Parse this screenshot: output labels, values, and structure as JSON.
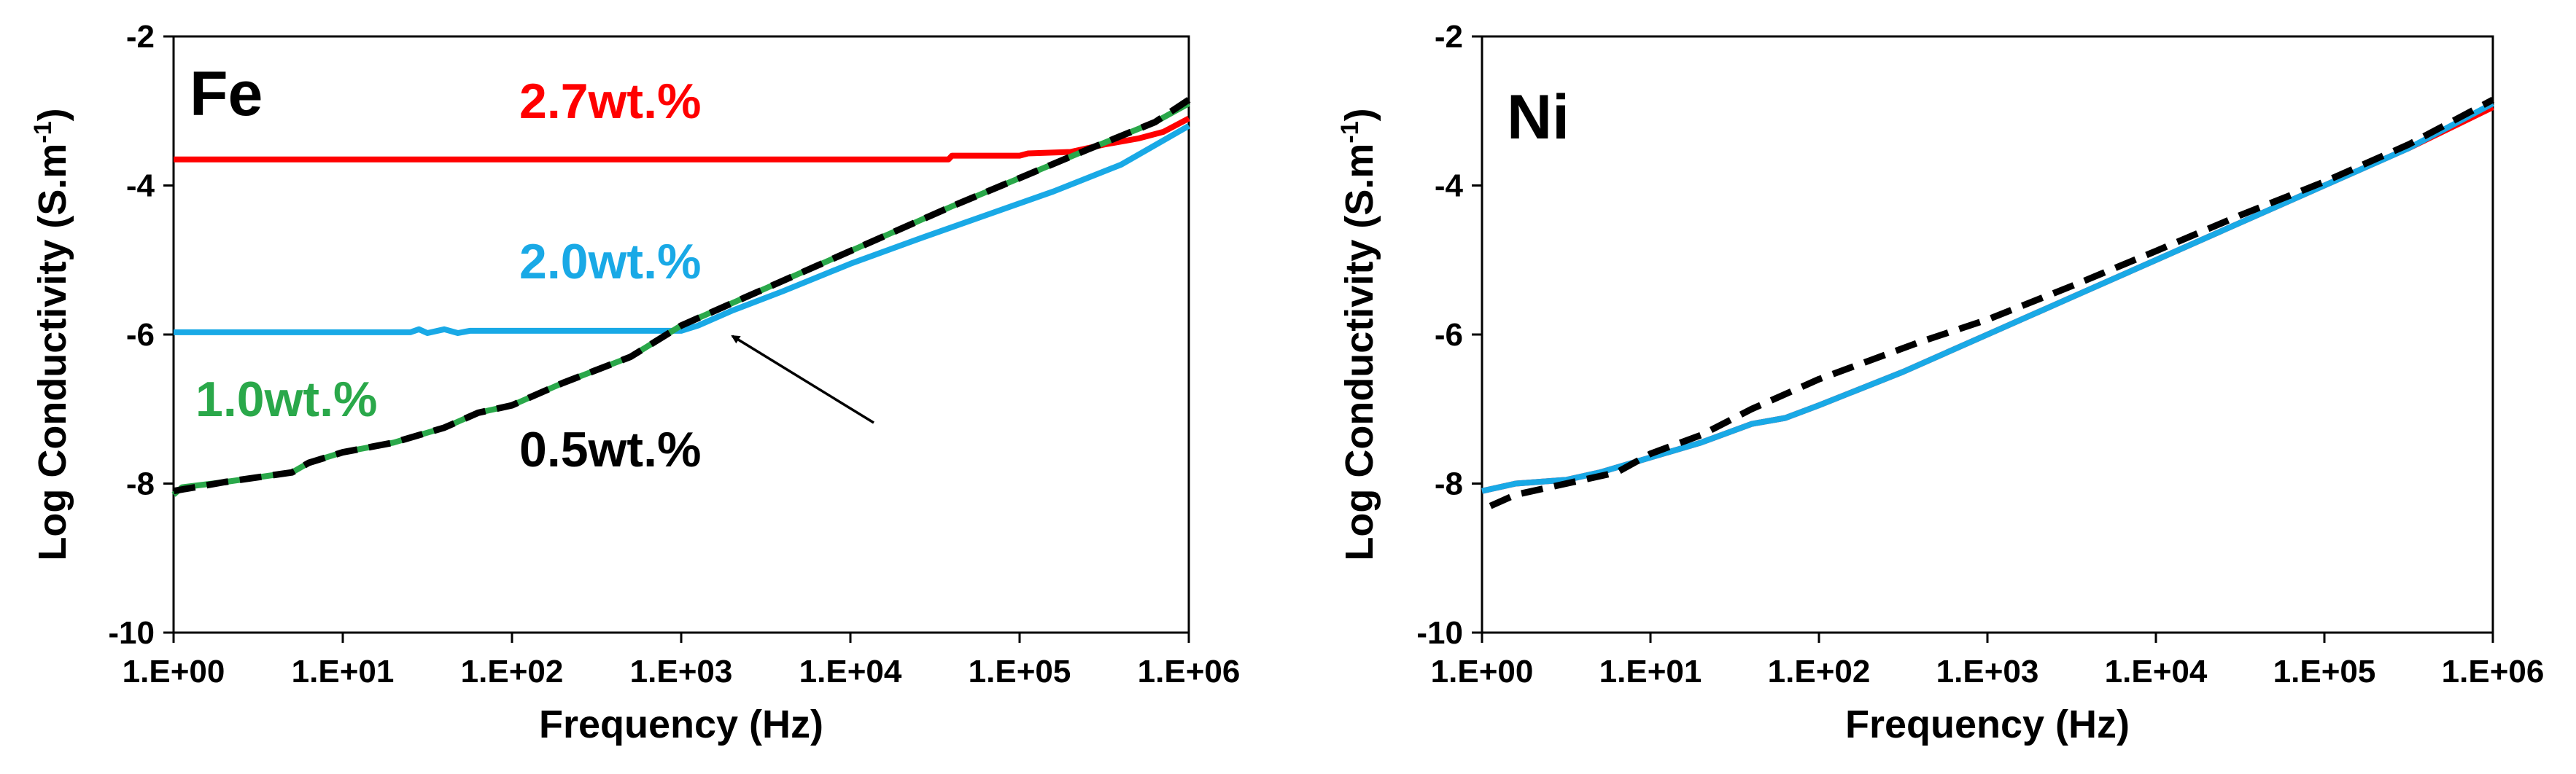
{
  "chart_data": [
    {
      "type": "line",
      "panel": "Fe",
      "title": "",
      "xlabel": "Frequency (Hz)",
      "ylabel": "Log Conductivity (S.m",
      "ylabel_superscript": "-1",
      "ylabel_close": ")",
      "xscale": "log",
      "xlim_exponent": [
        0,
        6
      ],
      "ylim": [
        -10,
        -2
      ],
      "xticks": [
        "1.E+00",
        "1.E+01",
        "1.E+02",
        "1.E+03",
        "1.E+04",
        "1.E+05",
        "1.E+06"
      ],
      "yticks": [
        "-2",
        "-4",
        "-6",
        "-8",
        "-10"
      ],
      "grid": false,
      "series": [
        {
          "name": "2.7wt.%",
          "color": "#ff0000",
          "style": "solid",
          "points": [
            [
              0,
              -3.65
            ],
            [
              4.58,
              -3.65
            ],
            [
              4.6,
              -3.6
            ],
            [
              5.0,
              -3.6
            ],
            [
              5.05,
              -3.57
            ],
            [
              5.3,
              -3.55
            ],
            [
              5.5,
              -3.45
            ],
            [
              5.7,
              -3.37
            ],
            [
              5.85,
              -3.28
            ],
            [
              6,
              -3.1
            ]
          ]
        },
        {
          "name": "2.0wt.%",
          "color": "#19a9e6",
          "style": "solid",
          "points": [
            [
              0,
              -5.97
            ],
            [
              1.4,
              -5.97
            ],
            [
              1.45,
              -5.93
            ],
            [
              1.5,
              -5.98
            ],
            [
              1.6,
              -5.93
            ],
            [
              1.68,
              -5.98
            ],
            [
              1.75,
              -5.95
            ],
            [
              3.0,
              -5.95
            ],
            [
              3.1,
              -5.88
            ],
            [
              3.3,
              -5.68
            ],
            [
              3.6,
              -5.42
            ],
            [
              4.0,
              -5.05
            ],
            [
              4.4,
              -4.72
            ],
            [
              4.8,
              -4.4
            ],
            [
              5.2,
              -4.08
            ],
            [
              5.6,
              -3.72
            ],
            [
              6,
              -3.2
            ]
          ]
        },
        {
          "name": "1.0wt.%",
          "color": "#2aa84a",
          "style": "solid",
          "points": [
            [
              0,
              -8.15
            ],
            [
              0.05,
              -8.05
            ],
            [
              0.3,
              -7.98
            ],
            [
              0.7,
              -7.85
            ],
            [
              0.8,
              -7.72
            ],
            [
              1.0,
              -7.58
            ],
            [
              1.3,
              -7.45
            ],
            [
              1.6,
              -7.25
            ],
            [
              1.8,
              -7.05
            ],
            [
              2.0,
              -6.95
            ],
            [
              2.3,
              -6.65
            ],
            [
              2.7,
              -6.3
            ],
            [
              3.0,
              -5.88
            ],
            [
              3.4,
              -5.48
            ],
            [
              3.8,
              -5.08
            ],
            [
              4.2,
              -4.68
            ],
            [
              4.6,
              -4.28
            ],
            [
              5.0,
              -3.9
            ],
            [
              5.4,
              -3.52
            ],
            [
              5.8,
              -3.15
            ],
            [
              6,
              -2.9
            ]
          ]
        },
        {
          "name": "0.5wt.%",
          "color": "#000000",
          "style": "dashed",
          "points": [
            [
              0,
              -8.1
            ],
            [
              0.3,
              -7.98
            ],
            [
              0.7,
              -7.85
            ],
            [
              0.8,
              -7.72
            ],
            [
              1.0,
              -7.58
            ],
            [
              1.3,
              -7.45
            ],
            [
              1.6,
              -7.25
            ],
            [
              1.8,
              -7.05
            ],
            [
              2.0,
              -6.95
            ],
            [
              2.3,
              -6.65
            ],
            [
              2.7,
              -6.3
            ],
            [
              3.0,
              -5.88
            ],
            [
              3.4,
              -5.48
            ],
            [
              3.8,
              -5.08
            ],
            [
              4.2,
              -4.68
            ],
            [
              4.6,
              -4.28
            ],
            [
              5.0,
              -3.9
            ],
            [
              5.4,
              -3.52
            ],
            [
              5.8,
              -3.15
            ],
            [
              6,
              -2.85
            ]
          ]
        }
      ],
      "annotations": [
        "2.7wt.%",
        "2.0wt.%",
        "1.0wt.%",
        "0.5wt.%"
      ],
      "arrow": {
        "from": [
          4.15,
          -7.1
        ],
        "to": [
          3.3,
          -6.0
        ]
      }
    },
    {
      "type": "line",
      "panel": "Ni",
      "title": "",
      "xlabel": "Frequency (Hz)",
      "ylabel": "Log Conductivity (S.m",
      "ylabel_superscript": "-1",
      "ylabel_close": ")",
      "xscale": "log",
      "xlim_exponent": [
        0,
        6
      ],
      "ylim": [
        -10,
        -2
      ],
      "xticks": [
        "1.E+00",
        "1.E+01",
        "1.E+02",
        "1.E+03",
        "1.E+04",
        "1.E+05",
        "1.E+06"
      ],
      "yticks": [
        "-2",
        "-4",
        "-6",
        "-8",
        "-10"
      ],
      "grid": false,
      "series": [
        {
          "name": "red",
          "color": "#ff0000",
          "style": "solid",
          "points": [
            [
              0,
              -8.1
            ],
            [
              0.2,
              -8.0
            ],
            [
              0.5,
              -7.95
            ],
            [
              0.7,
              -7.85
            ],
            [
              1.0,
              -7.65
            ],
            [
              1.3,
              -7.45
            ],
            [
              1.6,
              -7.2
            ],
            [
              1.8,
              -7.12
            ],
            [
              2.0,
              -6.95
            ],
            [
              2.5,
              -6.5
            ],
            [
              3.0,
              -6.0
            ],
            [
              3.5,
              -5.5
            ],
            [
              4.0,
              -5.0
            ],
            [
              4.5,
              -4.5
            ],
            [
              5.0,
              -4.0
            ],
            [
              5.5,
              -3.5
            ],
            [
              6,
              -2.95
            ]
          ]
        },
        {
          "name": "blue",
          "color": "#19a9e6",
          "style": "solid",
          "points": [
            [
              0,
              -8.1
            ],
            [
              0.2,
              -8.0
            ],
            [
              0.5,
              -7.95
            ],
            [
              0.7,
              -7.85
            ],
            [
              1.0,
              -7.65
            ],
            [
              1.3,
              -7.45
            ],
            [
              1.6,
              -7.2
            ],
            [
              1.8,
              -7.12
            ],
            [
              2.0,
              -6.95
            ],
            [
              2.5,
              -6.5
            ],
            [
              3.0,
              -6.0
            ],
            [
              3.5,
              -5.5
            ],
            [
              4.0,
              -5.0
            ],
            [
              4.5,
              -4.5
            ],
            [
              5.0,
              -4.0
            ],
            [
              5.5,
              -3.5
            ],
            [
              6,
              -2.9
            ]
          ]
        },
        {
          "name": "black-dashed",
          "color": "#000000",
          "style": "dashed",
          "points": [
            [
              0.05,
              -8.3
            ],
            [
              0.2,
              -8.15
            ],
            [
              0.5,
              -8.0
            ],
            [
              0.8,
              -7.85
            ],
            [
              1.0,
              -7.6
            ],
            [
              1.3,
              -7.35
            ],
            [
              1.6,
              -7.0
            ],
            [
              2.0,
              -6.6
            ],
            [
              2.3,
              -6.35
            ],
            [
              2.6,
              -6.1
            ],
            [
              3.0,
              -5.8
            ],
            [
              3.5,
              -5.35
            ],
            [
              4.0,
              -4.88
            ],
            [
              4.5,
              -4.4
            ],
            [
              5.0,
              -3.95
            ],
            [
              5.5,
              -3.45
            ],
            [
              6,
              -2.85
            ]
          ]
        }
      ]
    }
  ]
}
